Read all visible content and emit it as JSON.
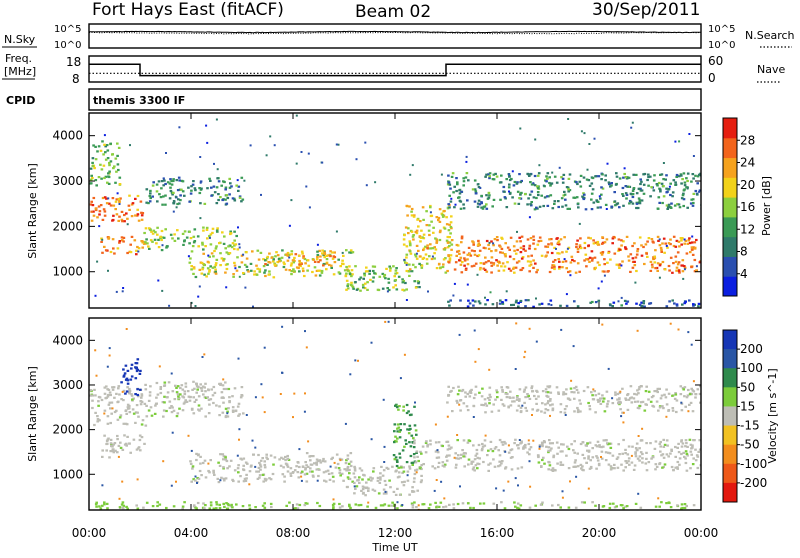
{
  "header": {
    "station": "Fort Hays East (fitACF)",
    "beam": "Beam 02",
    "date": "30/Sep/2011"
  },
  "side_labels": {
    "nsky": "N.Sky",
    "nsearch": "N.Search",
    "freq_line1": "Freq.",
    "freq_line2": "[MHz]",
    "nave": "Nave",
    "cpid": "CPID"
  },
  "noise_axis_ticks": [
    "10^5",
    "10^0"
  ],
  "freq_axis_ticks": [
    "18",
    "8"
  ],
  "nave_axis_ticks": [
    "60",
    "0"
  ],
  "cpid_name": "themis 3300 IF",
  "colors": {
    "power_scale": [
      "#0b1fe0",
      "#2a4fb0",
      "#2f7a6a",
      "#3a9a55",
      "#8ccf3e",
      "#f2d21a",
      "#f5a21e",
      "#f2641c",
      "#e51e10"
    ],
    "velocity_scale": [
      "#1636b5",
      "#2a56a5",
      "#2f8a4c",
      "#7ccc3b",
      "#bdbdb5",
      "#f1c122",
      "#f28d1d",
      "#ee5818",
      "#e3180e"
    ],
    "frame": "#000000"
  },
  "chart_data": [
    {
      "type": "line",
      "panel": "noise",
      "series": [
        {
          "name": "N.Sky",
          "style": "solid"
        },
        {
          "name": "N.Search",
          "style": "dotted"
        }
      ],
      "yscale": "log",
      "ylim": [
        1,
        100000
      ]
    },
    {
      "type": "line",
      "panel": "frequency",
      "series": [
        {
          "name": "Freq.",
          "x": [
            "00:00",
            "02:00",
            "02:00",
            "14:00",
            "14:00",
            "24:00"
          ],
          "values": [
            15.9,
            15.9,
            10.2,
            10.2,
            15.9,
            15.9
          ]
        },
        {
          "name": "Nave",
          "style": "dotted",
          "x": [
            "00:00",
            "24:00"
          ],
          "values": [
            20,
            20
          ]
        }
      ],
      "ylim_freq": [
        8,
        18
      ],
      "ylim_nave": [
        0,
        60
      ]
    },
    {
      "type": "heatmap",
      "panel": "power",
      "ylabel": "Slant Range [km]",
      "yticks": [
        1000,
        2000,
        3000,
        4000
      ],
      "ylim": [
        200,
        4500
      ],
      "colorbar": {
        "label": "Power [dB]",
        "ticks": [
          4,
          8,
          12,
          16,
          20,
          24,
          28
        ],
        "range": [
          0,
          32
        ]
      },
      "echo_regions": [
        {
          "t0": 0.0,
          "t1": 2.1,
          "r0": 2100,
          "r1": 2700,
          "level": 26
        },
        {
          "t0": 0.4,
          "t1": 2.2,
          "r0": 1400,
          "r1": 1800,
          "level": 24
        },
        {
          "t0": 0.0,
          "t1": 1.2,
          "r0": 2900,
          "r1": 3900,
          "level": 14
        },
        {
          "t0": 2.1,
          "t1": 5.8,
          "r0": 1500,
          "r1": 2000,
          "level": 16
        },
        {
          "t0": 2.2,
          "t1": 6.0,
          "r0": 2500,
          "r1": 3100,
          "level": 10
        },
        {
          "t0": 3.9,
          "t1": 10.3,
          "r0": 900,
          "r1": 1500,
          "level": 18
        },
        {
          "t0": 6.8,
          "t1": 9.6,
          "r0": 1150,
          "r1": 1450,
          "level": 22
        },
        {
          "t0": 10.0,
          "t1": 13.0,
          "r0": 600,
          "r1": 1200,
          "level": 14
        },
        {
          "t0": 12.3,
          "t1": 14.2,
          "r0": 1000,
          "r1": 2500,
          "level": 20
        },
        {
          "t0": 14.0,
          "t1": 24.0,
          "r0": 1000,
          "r1": 1800,
          "level": 25
        },
        {
          "t0": 14.0,
          "t1": 24.0,
          "r0": 2400,
          "r1": 3200,
          "level": 10
        },
        {
          "t0": 14.0,
          "t1": 24.0,
          "r0": 250,
          "r1": 400,
          "level": 6
        }
      ]
    },
    {
      "type": "heatmap",
      "panel": "velocity",
      "xlabel": "Time UT",
      "ylabel": "Slant Range [km]",
      "yticks": [
        1000,
        2000,
        3000,
        4000
      ],
      "ylim": [
        200,
        4500
      ],
      "xticks": [
        "00:00",
        "04:00",
        "08:00",
        "12:00",
        "16:00",
        "20:00",
        "00:00"
      ],
      "xlim": [
        0,
        24
      ],
      "colorbar": {
        "label": "Velocity [m s^-1]",
        "ticks": [
          200,
          100,
          50,
          15,
          -15,
          -50,
          -100,
          -200
        ]
      },
      "echo_regions": [
        {
          "t0": 0.0,
          "t1": 2.2,
          "r0": 2100,
          "r1": 3000,
          "level": 0
        },
        {
          "t0": 0.4,
          "t1": 2.2,
          "r0": 1400,
          "r1": 1900,
          "level": 0
        },
        {
          "t0": 2.1,
          "t1": 6.0,
          "r0": 2300,
          "r1": 3100,
          "level": 0
        },
        {
          "t0": 3.9,
          "t1": 10.3,
          "r0": 850,
          "r1": 1500,
          "level": 0
        },
        {
          "t0": 10.0,
          "t1": 13.0,
          "r0": 550,
          "r1": 1200,
          "level": 0
        },
        {
          "t0": 11.9,
          "t1": 12.8,
          "r0": 1200,
          "r1": 2600,
          "level": 60
        },
        {
          "t0": 12.7,
          "t1": 24.0,
          "r0": 1100,
          "r1": 1800,
          "level": 0
        },
        {
          "t0": 14.0,
          "t1": 24.0,
          "r0": 2400,
          "r1": 3000,
          "level": 0
        },
        {
          "t0": 1.2,
          "t1": 2.0,
          "r0": 2800,
          "r1": 3600,
          "level": 220
        },
        {
          "t0": 0.0,
          "t1": 24.0,
          "r0": 250,
          "r1": 400,
          "level": 25
        }
      ]
    }
  ]
}
